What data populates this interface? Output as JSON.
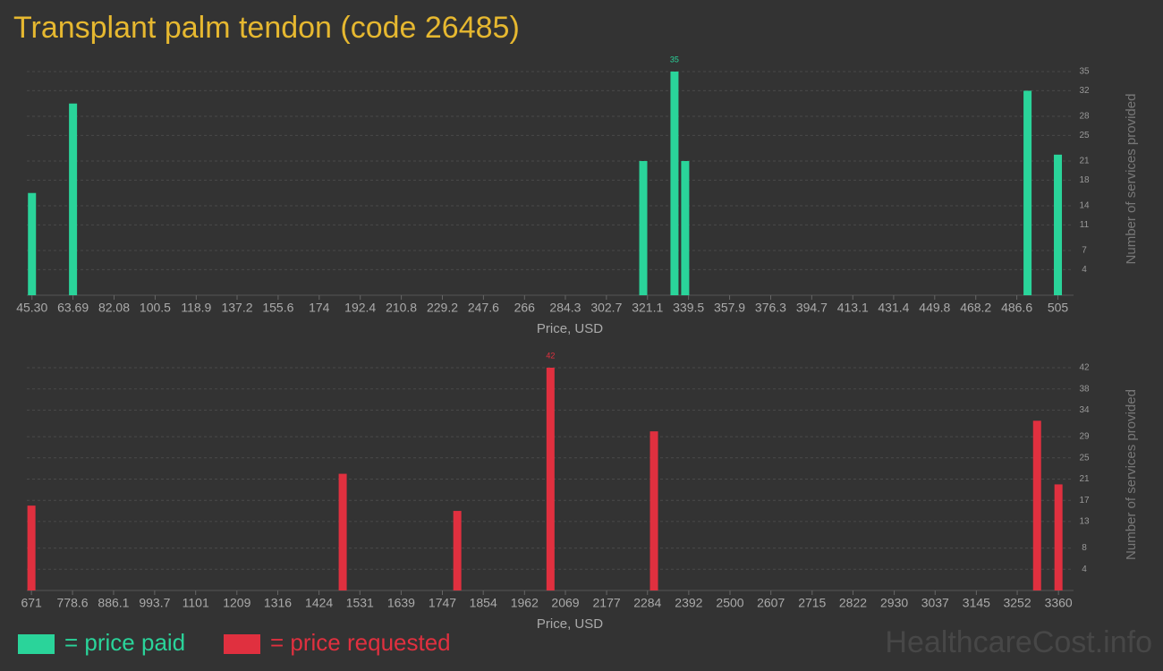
{
  "title": "Transplant palm tendon (code 26485)",
  "watermark": "HealthcareCost.info",
  "chart_data": [
    {
      "type": "bar",
      "x_label": "Price, USD",
      "y_label": "Number of services provided",
      "x": [
        45.3,
        63.69,
        319.2,
        333.2,
        338.0,
        491.4,
        505
      ],
      "series": [
        {
          "name": "= price paid",
          "color": "#2ad49a",
          "values": [
            16,
            30,
            21,
            35,
            21,
            32,
            22
          ]
        }
      ],
      "xlim": [
        43,
        508
      ],
      "ylim": [
        0,
        35
      ],
      "xticks": [
        {
          "value": 45.3,
          "label": "45.30"
        },
        63.69,
        82.08,
        100.5,
        118.9,
        137.2,
        155.6,
        174,
        192.4,
        210.8,
        229.2,
        247.6,
        266,
        284.3,
        302.7,
        321.1,
        339.5,
        357.9,
        376.3,
        394.7,
        413.1,
        431.4,
        449.8,
        468.2,
        486.6,
        505
      ],
      "yticks": [
        4,
        7,
        11,
        14,
        18,
        21,
        25,
        28,
        32,
        35
      ],
      "grid": true
    },
    {
      "type": "bar",
      "x_label": "Price, USD",
      "y_label": "Number of services provided",
      "x": [
        671,
        1486,
        1786,
        2030,
        2301,
        3304,
        3360
      ],
      "series": [
        {
          "name": "= price requested",
          "color": "#e0303f",
          "values": [
            16,
            22,
            15,
            42,
            30,
            32,
            20
          ]
        }
      ],
      "xlim": [
        659,
        3376
      ],
      "ylim": [
        0,
        42
      ],
      "xticks": [
        671,
        778.6,
        886.1,
        993.7,
        1101,
        1209,
        1316,
        1424,
        1531,
        1639,
        1747,
        1854,
        1962,
        2069,
        2177,
        2284,
        2392,
        2500,
        2607,
        2715,
        2822,
        2930,
        3037,
        3145,
        3252,
        3360
      ],
      "yticks": [
        4,
        8,
        13,
        17,
        21,
        25,
        29,
        34,
        38,
        42
      ],
      "grid": true
    }
  ]
}
